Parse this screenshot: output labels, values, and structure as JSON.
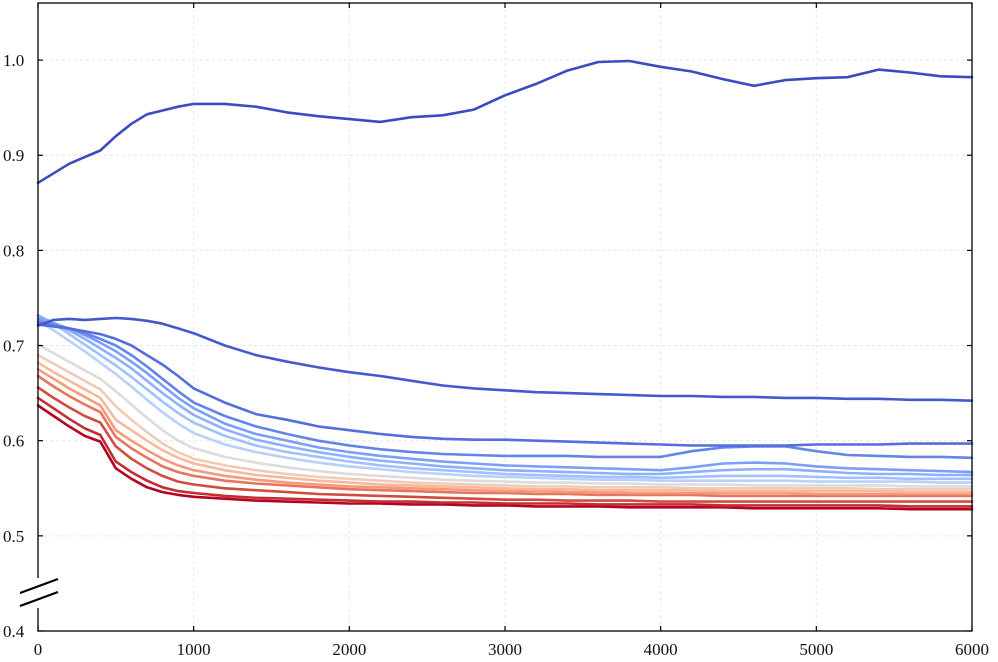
{
  "chart_data": {
    "type": "line",
    "title": "",
    "xlabel": "",
    "ylabel": "",
    "xlim": [
      0,
      6000
    ],
    "ylim": [
      0.4,
      1.06
    ],
    "y_axis_break": true,
    "grid": true,
    "legend": "none",
    "colormap": "coolwarm",
    "x_ticks": [
      0,
      1000,
      2000,
      3000,
      4000,
      5000,
      6000
    ],
    "y_ticks": [
      0.4,
      0.5,
      0.6,
      0.7,
      0.8,
      0.9,
      1.0
    ],
    "x_tick_labels": [
      "0",
      "1000",
      "2000",
      "3000",
      "4000",
      "5000",
      "6000"
    ],
    "y_tick_labels": [
      "0.4",
      "0.5",
      "0.6",
      "0.7",
      "0.8",
      "0.9",
      "1.0"
    ],
    "x": [
      0,
      100,
      200,
      300,
      400,
      500,
      600,
      700,
      800,
      900,
      1000,
      1200,
      1400,
      1600,
      1800,
      2000,
      2200,
      2400,
      2600,
      2800,
      3000,
      3200,
      3400,
      3600,
      3800,
      4000,
      4200,
      4400,
      4600,
      4800,
      5000,
      5200,
      5400,
      5600,
      5800,
      6000
    ],
    "series": [
      {
        "color": "#3b4cc0",
        "values": [
          0.871,
          0.881,
          0.891,
          0.898,
          0.905,
          0.92,
          0.933,
          0.943,
          0.947,
          0.951,
          0.954,
          0.954,
          0.951,
          0.945,
          0.941,
          0.938,
          0.935,
          0.94,
          0.942,
          0.948,
          0.963,
          0.975,
          0.989,
          0.998,
          0.999,
          0.993,
          0.988,
          0.98,
          0.973,
          0.979,
          0.981,
          0.982,
          0.99,
          0.987,
          0.983,
          0.982
        ]
      },
      {
        "color": "#445acc",
        "values": [
          0.721,
          0.727,
          0.728,
          0.727,
          0.728,
          0.729,
          0.728,
          0.726,
          0.723,
          0.718,
          0.713,
          0.7,
          0.69,
          0.683,
          0.677,
          0.672,
          0.668,
          0.663,
          0.658,
          0.655,
          0.653,
          0.651,
          0.65,
          0.649,
          0.648,
          0.647,
          0.647,
          0.646,
          0.646,
          0.645,
          0.645,
          0.644,
          0.644,
          0.643,
          0.643,
          0.642
        ]
      },
      {
        "color": "#536edd",
        "values": [
          0.722,
          0.72,
          0.718,
          0.715,
          0.712,
          0.707,
          0.7,
          0.69,
          0.68,
          0.668,
          0.655,
          0.64,
          0.628,
          0.622,
          0.615,
          0.611,
          0.607,
          0.604,
          0.602,
          0.601,
          0.601,
          0.6,
          0.599,
          0.598,
          0.597,
          0.596,
          0.595,
          0.595,
          0.595,
          0.595,
          0.596,
          0.596,
          0.596,
          0.597,
          0.597,
          0.597
        ]
      },
      {
        "color": "#6384eb",
        "values": [
          0.725,
          0.722,
          0.718,
          0.713,
          0.707,
          0.7,
          0.69,
          0.678,
          0.665,
          0.652,
          0.64,
          0.626,
          0.615,
          0.607,
          0.6,
          0.595,
          0.591,
          0.588,
          0.586,
          0.585,
          0.584,
          0.584,
          0.584,
          0.583,
          0.583,
          0.583,
          0.589,
          0.593,
          0.594,
          0.594,
          0.589,
          0.585,
          0.584,
          0.583,
          0.583,
          0.582
        ]
      },
      {
        "color": "#7b9ff9",
        "values": [
          0.728,
          0.723,
          0.718,
          0.711,
          0.703,
          0.694,
          0.683,
          0.671,
          0.658,
          0.645,
          0.634,
          0.618,
          0.607,
          0.6,
          0.593,
          0.588,
          0.584,
          0.581,
          0.578,
          0.576,
          0.574,
          0.573,
          0.572,
          0.571,
          0.57,
          0.569,
          0.572,
          0.576,
          0.577,
          0.576,
          0.573,
          0.571,
          0.57,
          0.569,
          0.568,
          0.567
        ]
      },
      {
        "color": "#8db0fe",
        "values": [
          0.731,
          0.724,
          0.716,
          0.707,
          0.697,
          0.687,
          0.676,
          0.663,
          0.65,
          0.638,
          0.627,
          0.612,
          0.601,
          0.594,
          0.588,
          0.583,
          0.579,
          0.576,
          0.573,
          0.571,
          0.569,
          0.568,
          0.567,
          0.566,
          0.565,
          0.565,
          0.567,
          0.569,
          0.57,
          0.57,
          0.568,
          0.566,
          0.565,
          0.565,
          0.564,
          0.564
        ]
      },
      {
        "color": "#a1c0ff",
        "values": [
          0.732,
          0.723,
          0.712,
          0.701,
          0.69,
          0.679,
          0.667,
          0.654,
          0.641,
          0.629,
          0.619,
          0.605,
          0.595,
          0.588,
          0.583,
          0.578,
          0.574,
          0.571,
          0.569,
          0.567,
          0.565,
          0.564,
          0.563,
          0.562,
          0.562,
          0.561,
          0.562,
          0.563,
          0.563,
          0.563,
          0.562,
          0.561,
          0.561,
          0.56,
          0.56,
          0.56
        ]
      },
      {
        "color": "#b9d0f9",
        "values": [
          0.726,
          0.716,
          0.705,
          0.694,
          0.682,
          0.67,
          0.657,
          0.643,
          0.63,
          0.618,
          0.608,
          0.596,
          0.588,
          0.582,
          0.577,
          0.573,
          0.57,
          0.567,
          0.565,
          0.563,
          0.562,
          0.561,
          0.56,
          0.559,
          0.559,
          0.558,
          0.558,
          0.558,
          0.558,
          0.558,
          0.557,
          0.557,
          0.557,
          0.557,
          0.556,
          0.556
        ]
      },
      {
        "color": "#dddcdc",
        "values": [
          0.701,
          0.692,
          0.683,
          0.674,
          0.665,
          0.652,
          0.638,
          0.624,
          0.611,
          0.6,
          0.592,
          0.583,
          0.577,
          0.572,
          0.568,
          0.565,
          0.563,
          0.561,
          0.559,
          0.558,
          0.557,
          0.556,
          0.556,
          0.555,
          0.555,
          0.554,
          0.554,
          0.554,
          0.553,
          0.553,
          0.553,
          0.553,
          0.553,
          0.552,
          0.552,
          0.552
        ]
      },
      {
        "color": "#f2cbb7",
        "values": [
          0.69,
          0.681,
          0.672,
          0.663,
          0.654,
          0.636,
          0.622,
          0.609,
          0.597,
          0.588,
          0.581,
          0.574,
          0.569,
          0.565,
          0.562,
          0.56,
          0.558,
          0.556,
          0.555,
          0.554,
          0.553,
          0.552,
          0.552,
          0.551,
          0.551,
          0.551,
          0.55,
          0.55,
          0.55,
          0.55,
          0.55,
          0.55,
          0.549,
          0.549,
          0.549,
          0.549
        ]
      },
      {
        "color": "#f7b89c",
        "values": [
          0.682,
          0.672,
          0.663,
          0.654,
          0.645,
          0.622,
          0.611,
          0.6,
          0.59,
          0.582,
          0.576,
          0.569,
          0.564,
          0.561,
          0.558,
          0.556,
          0.554,
          0.553,
          0.552,
          0.551,
          0.55,
          0.549,
          0.549,
          0.548,
          0.548,
          0.548,
          0.548,
          0.547,
          0.547,
          0.547,
          0.547,
          0.547,
          0.547,
          0.546,
          0.546,
          0.546
        ]
      },
      {
        "color": "#f49a7b",
        "values": [
          0.675,
          0.665,
          0.655,
          0.646,
          0.637,
          0.611,
          0.6,
          0.59,
          0.581,
          0.574,
          0.569,
          0.563,
          0.559,
          0.556,
          0.554,
          0.552,
          0.551,
          0.55,
          0.549,
          0.548,
          0.547,
          0.547,
          0.546,
          0.546,
          0.545,
          0.545,
          0.545,
          0.545,
          0.545,
          0.545,
          0.544,
          0.544,
          0.544,
          0.544,
          0.544,
          0.544
        ]
      },
      {
        "color": "#e7745b",
        "values": [
          0.668,
          0.657,
          0.647,
          0.638,
          0.63,
          0.604,
          0.592,
          0.582,
          0.573,
          0.567,
          0.563,
          0.558,
          0.555,
          0.553,
          0.551,
          0.549,
          0.548,
          0.547,
          0.546,
          0.545,
          0.545,
          0.544,
          0.544,
          0.543,
          0.543,
          0.543,
          0.543,
          0.542,
          0.542,
          0.542,
          0.542,
          0.542,
          0.542,
          0.542,
          0.542,
          0.542
        ]
      },
      {
        "color": "#d24b40",
        "values": [
          0.656,
          0.645,
          0.635,
          0.626,
          0.619,
          0.594,
          0.581,
          0.571,
          0.563,
          0.557,
          0.554,
          0.55,
          0.548,
          0.546,
          0.544,
          0.543,
          0.542,
          0.541,
          0.54,
          0.539,
          0.538,
          0.538,
          0.537,
          0.537,
          0.537,
          0.536,
          0.536,
          0.536,
          0.536,
          0.536,
          0.536,
          0.536,
          0.536,
          0.536,
          0.536,
          0.536
        ]
      },
      {
        "color": "#c32e31",
        "values": [
          0.645,
          0.634,
          0.623,
          0.613,
          0.606,
          0.578,
          0.567,
          0.558,
          0.551,
          0.547,
          0.545,
          0.542,
          0.54,
          0.539,
          0.538,
          0.537,
          0.536,
          0.536,
          0.535,
          0.535,
          0.534,
          0.534,
          0.534,
          0.533,
          0.533,
          0.533,
          0.533,
          0.532,
          0.532,
          0.532,
          0.532,
          0.532,
          0.532,
          0.531,
          0.531,
          0.531
        ]
      },
      {
        "color": "#b40426",
        "values": [
          0.637,
          0.626,
          0.615,
          0.605,
          0.599,
          0.571,
          0.56,
          0.551,
          0.546,
          0.543,
          0.541,
          0.539,
          0.537,
          0.536,
          0.535,
          0.534,
          0.534,
          0.533,
          0.533,
          0.532,
          0.532,
          0.531,
          0.531,
          0.531,
          0.53,
          0.53,
          0.53,
          0.53,
          0.529,
          0.529,
          0.529,
          0.529,
          0.529,
          0.528,
          0.528,
          0.528
        ]
      }
    ]
  }
}
